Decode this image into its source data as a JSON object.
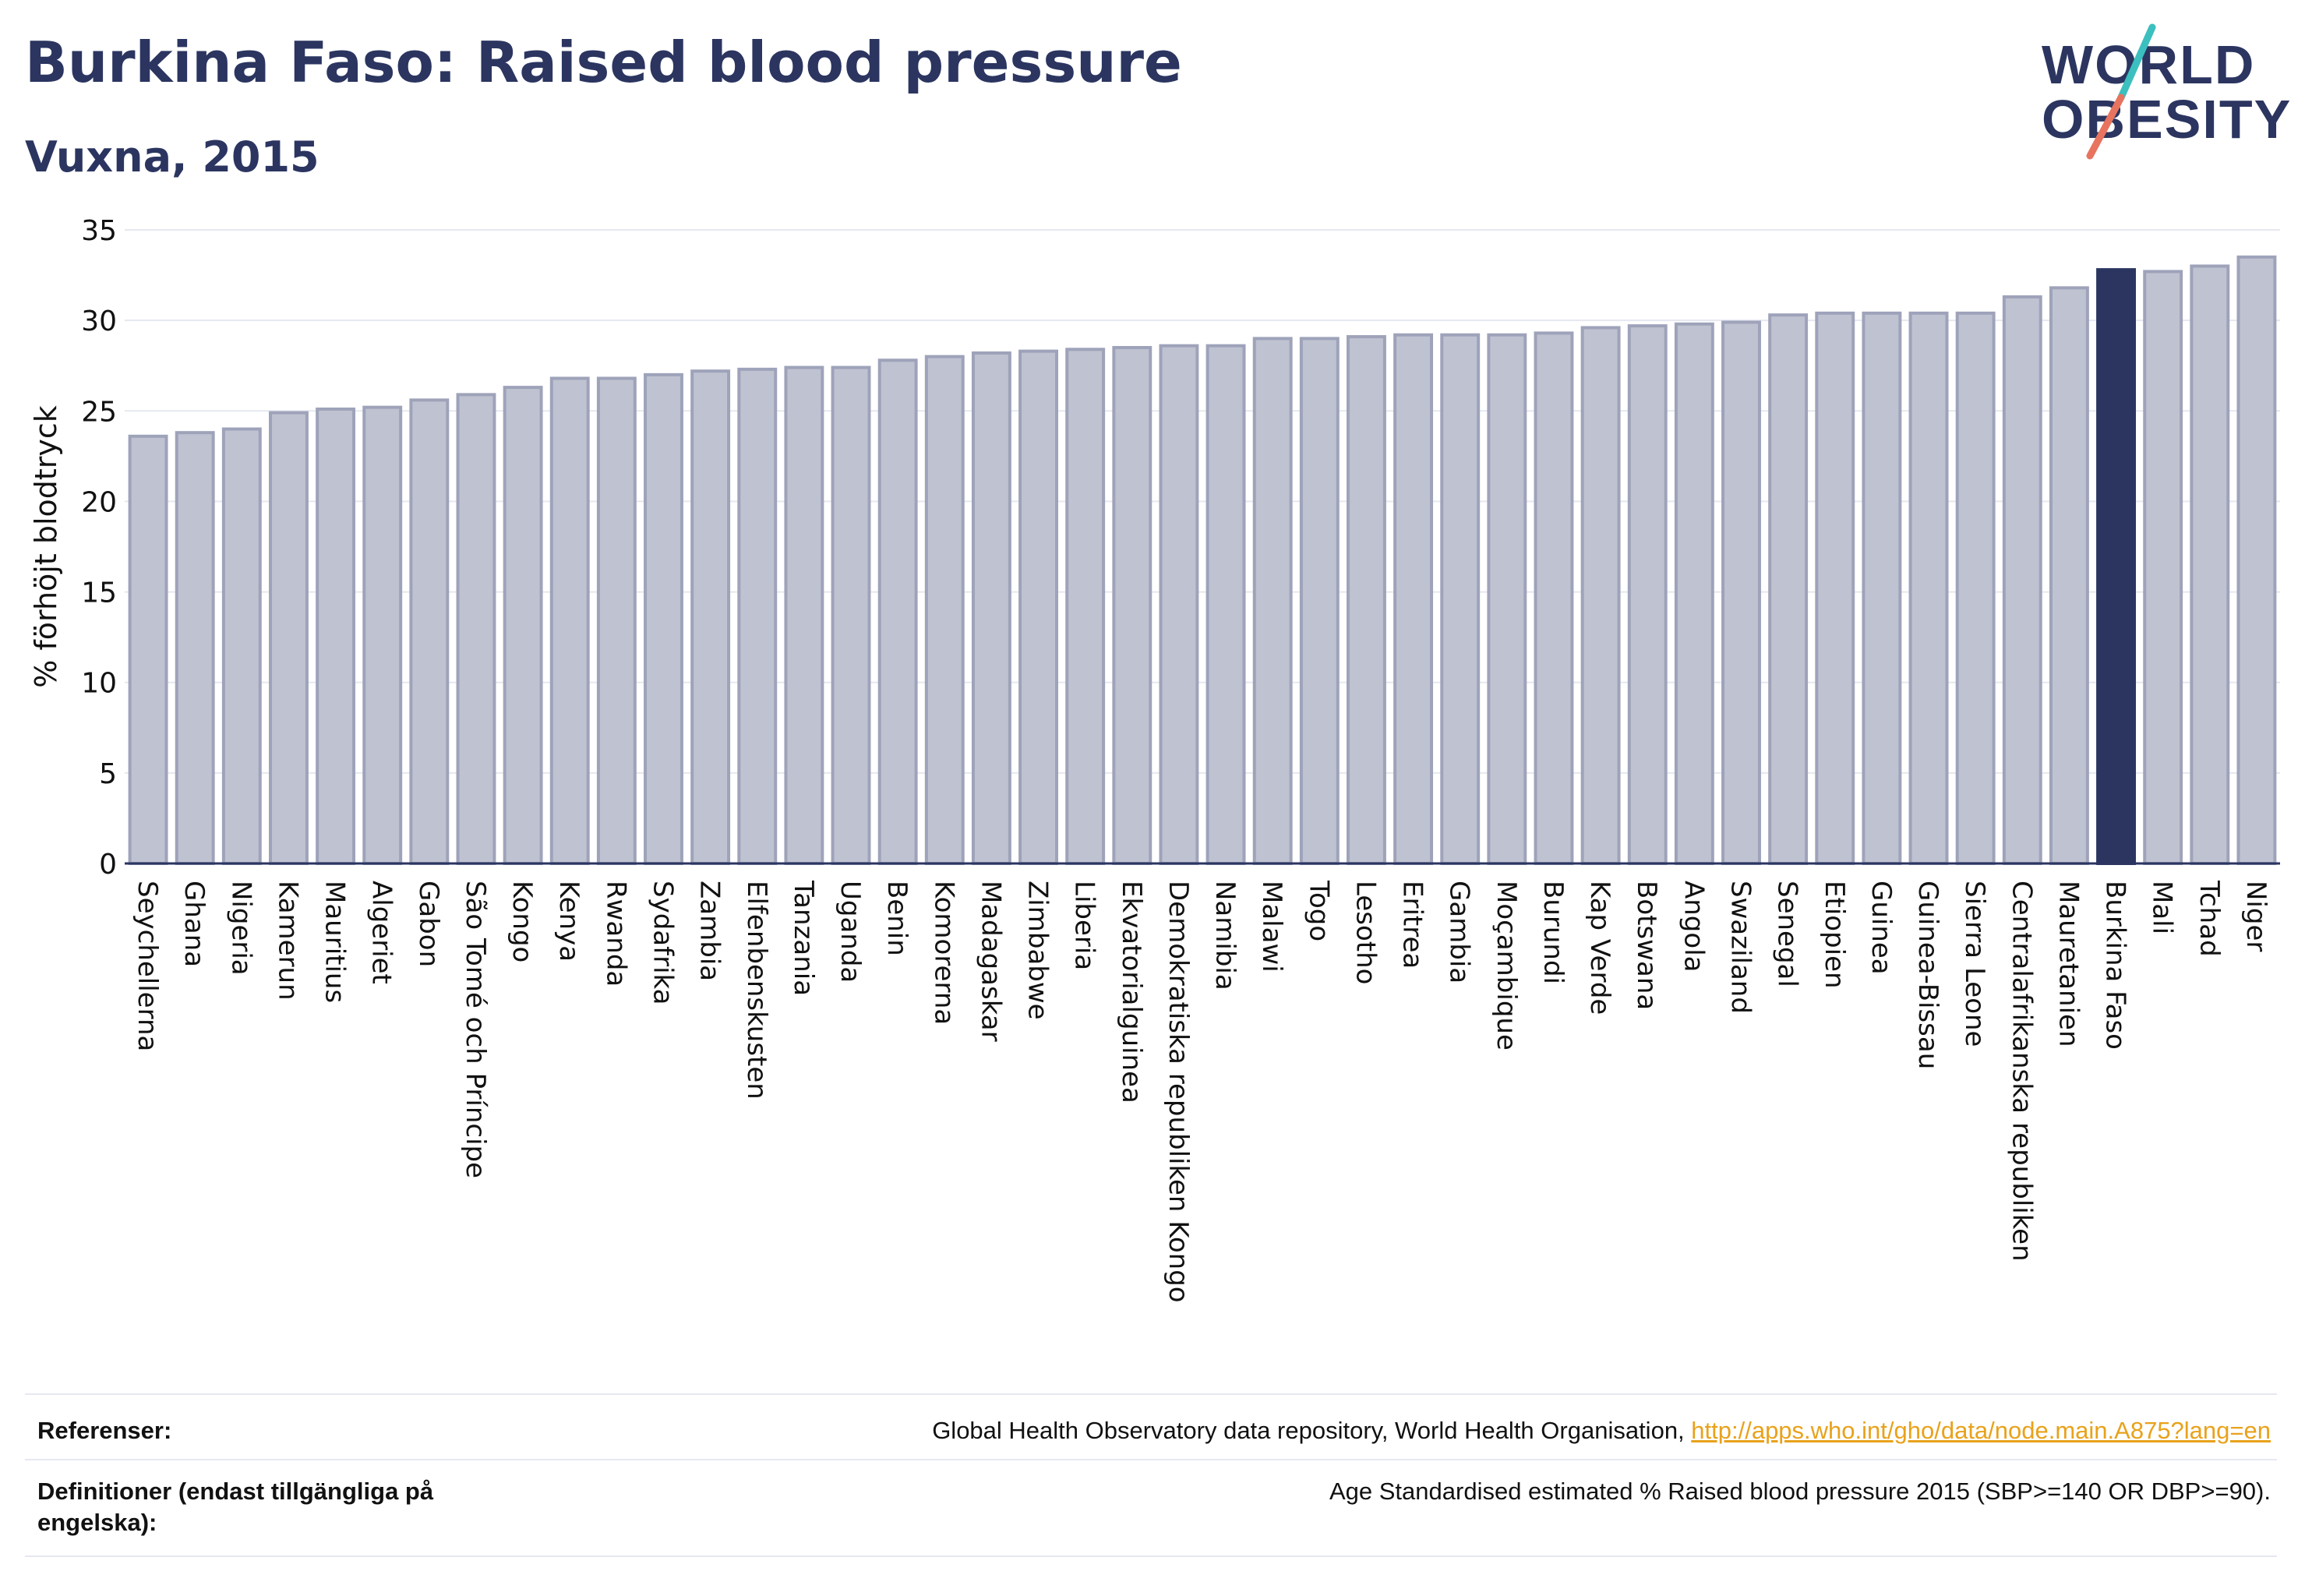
{
  "header": {
    "title": "Burkina Faso: Raised blood pressure",
    "subtitle": "Vuxna, 2015",
    "logo_line1": "WORLD",
    "logo_line2": "OBESITY"
  },
  "colors": {
    "bar": "#bfc2d0",
    "bar_stroke": "#9ea3ba",
    "highlight": "#2b3560",
    "text": "#2b3560",
    "link": "#e8a21b",
    "logo_teal": "#3cbfbf",
    "logo_coral": "#e8735e"
  },
  "chart_data": {
    "type": "bar",
    "title": "Burkina Faso: Raised blood pressure",
    "subtitle": "Vuxna, 2015",
    "xlabel": "",
    "ylabel": "% förhöjt blodtryck",
    "ylim": [
      0,
      35
    ],
    "yticks": [
      0,
      5,
      10,
      15,
      20,
      25,
      30,
      35
    ],
    "grid": true,
    "highlight": "Burkina Faso",
    "categories": [
      "Seychellerna",
      "Ghana",
      "Nigeria",
      "Kamerun",
      "Mauritius",
      "Algeriet",
      "Gabon",
      "São Tomé och Príncipe",
      "Kongo",
      "Kenya",
      "Rwanda",
      "Sydafrika",
      "Zambia",
      "Elfenbenskusten",
      "Tanzania",
      "Uganda",
      "Benin",
      "Komorerna",
      "Madagaskar",
      "Zimbabwe",
      "Liberia",
      "Ekvatorialguinea",
      "Demokratiska republiken Kongo",
      "Namibia",
      "Malawi",
      "Togo",
      "Lesotho",
      "Eritrea",
      "Gambia",
      "Moçambique",
      "Burundi",
      "Kap Verde",
      "Botswana",
      "Angola",
      "Swaziland",
      "Senegal",
      "Etiopien",
      "Guinea",
      "Guinea-Bissau",
      "Sierra Leone",
      "Centralafrikanska republiken",
      "Mauretanien",
      "Burkina Faso",
      "Mali",
      "Tchad",
      "Niger"
    ],
    "values": [
      23.6,
      23.8,
      24.0,
      24.9,
      25.1,
      25.2,
      25.6,
      25.9,
      26.3,
      26.8,
      26.8,
      27.0,
      27.2,
      27.3,
      27.4,
      27.4,
      27.8,
      28.0,
      28.2,
      28.3,
      28.4,
      28.5,
      28.6,
      28.6,
      29.0,
      29.0,
      29.1,
      29.2,
      29.2,
      29.2,
      29.3,
      29.6,
      29.7,
      29.8,
      29.9,
      30.3,
      30.4,
      30.4,
      30.4,
      30.4,
      31.3,
      31.8,
      32.8,
      32.7,
      33.0,
      33.5
    ]
  },
  "footer": {
    "references_label": "Referenser:",
    "references_text": "Global Health Observatory data repository, World Health Organisation, ",
    "references_link": "http://apps.who.int/gho/data/node.main.A875?lang=en",
    "definitions_label_line1": "Definitioner (endast tillgängliga på",
    "definitions_label_line2": "engelska):",
    "definitions_text": "Age Standardised estimated % Raised blood pressure 2015 (SBP>=140 OR DBP>=90)."
  }
}
